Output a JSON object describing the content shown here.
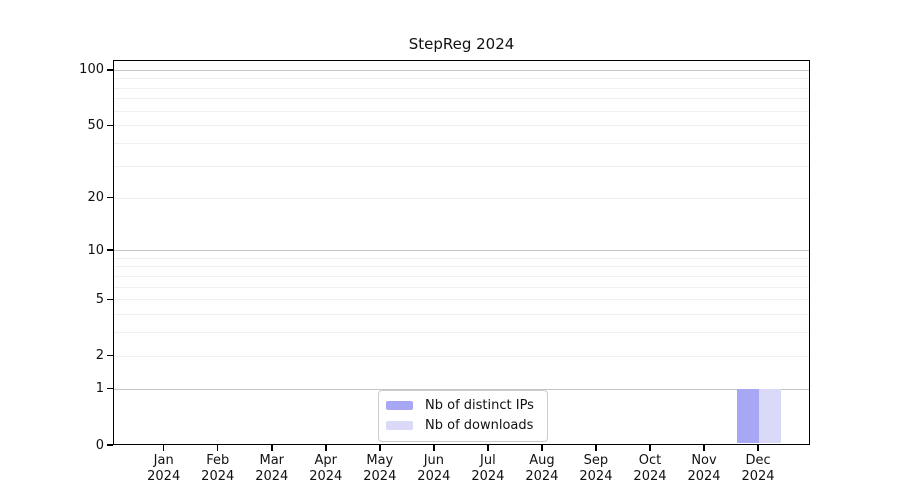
{
  "chart_data": {
    "type": "bar",
    "title": "StepReg 2024",
    "categories": [
      "Jan",
      "Feb",
      "Mar",
      "Apr",
      "May",
      "Jun",
      "Jul",
      "Aug",
      "Sep",
      "Oct",
      "Nov",
      "Dec"
    ],
    "category_year": "2024",
    "series": [
      {
        "name": "Nb of distinct IPs",
        "color": "#a7a7f5",
        "values": [
          0,
          0,
          0,
          0,
          0,
          0,
          0,
          0,
          0,
          0,
          0,
          1
        ]
      },
      {
        "name": "Nb of downloads",
        "color": "#dadaf8",
        "values": [
          0,
          0,
          0,
          0,
          0,
          0,
          0,
          0,
          0,
          0,
          0,
          1
        ]
      }
    ],
    "xlabel": "",
    "ylabel": "",
    "yticks": [
      0,
      1,
      2,
      5,
      10,
      20,
      50,
      100
    ],
    "ylim": [
      0,
      113
    ],
    "y_scale": "log10(1+y)",
    "y_major_gridlines": [
      1,
      10,
      100
    ],
    "y_minor_gridlines": [
      2,
      3,
      4,
      5,
      6,
      7,
      8,
      9,
      20,
      30,
      40,
      50,
      60,
      70,
      80,
      90
    ],
    "grid": "horizontal",
    "legend_position": "bottom-center"
  }
}
